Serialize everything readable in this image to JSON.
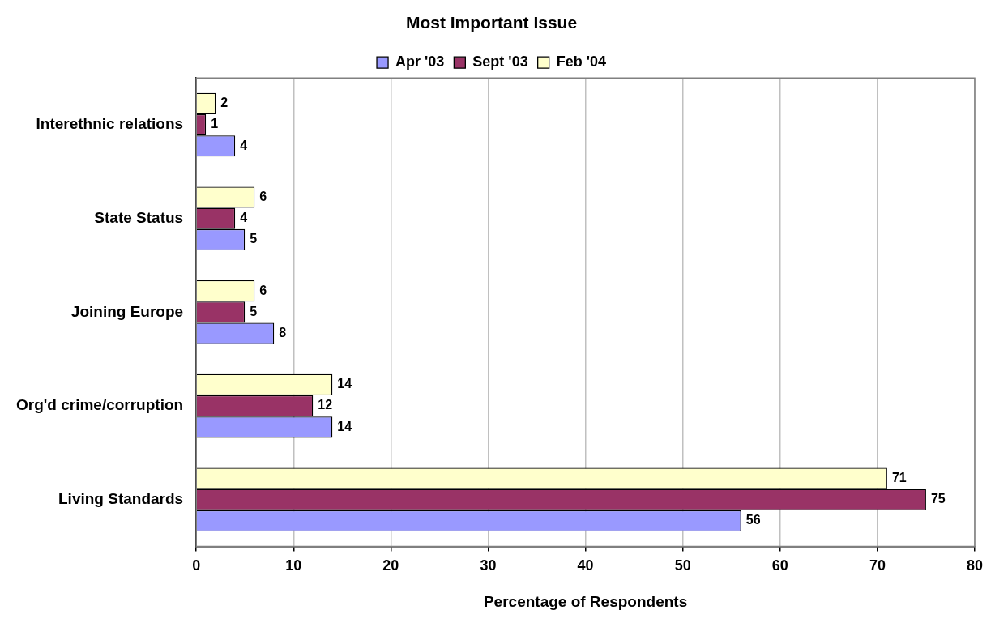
{
  "chart_data": {
    "type": "bar",
    "orientation": "horizontal",
    "title": "Most Important Issue",
    "xlabel": "Percentage of Respondents",
    "categories": [
      "Interethnic relations",
      "State Status",
      "Joining Europe",
      "Org'd crime/corruption",
      "Living Standards"
    ],
    "series": [
      {
        "name": "Apr '03",
        "color": "#9999ff",
        "values": [
          4,
          5,
          8,
          14,
          56
        ]
      },
      {
        "name": "Sept '03",
        "color": "#993366",
        "values": [
          1,
          4,
          5,
          12,
          75
        ]
      },
      {
        "name": "Feb '04",
        "color": "#ffffcc",
        "values": [
          2,
          6,
          6,
          14,
          71
        ]
      }
    ],
    "xlim": [
      0,
      80
    ],
    "xticks": [
      0,
      10,
      20,
      30,
      40,
      50,
      60,
      70,
      80
    ],
    "grid": "x",
    "legend": "top",
    "data_labels": true
  }
}
